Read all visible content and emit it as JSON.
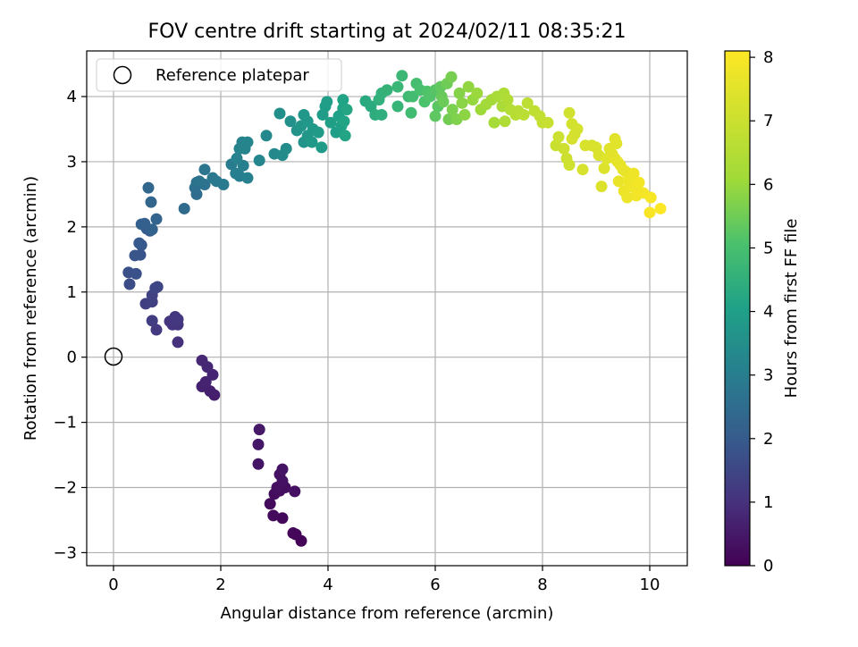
{
  "chart_data": {
    "type": "scatter",
    "title": "FOV centre drift starting at 2024/02/11 08:35:21",
    "xlabel": "Angular distance from reference (arcmin)",
    "ylabel": "Rotation from reference (arcmin)",
    "xlim": [
      -0.5,
      10.7
    ],
    "ylim": [
      -3.2,
      4.7
    ],
    "xticks": [
      0,
      2,
      4,
      6,
      8,
      10
    ],
    "yticks": [
      -3,
      -2,
      -1,
      0,
      1,
      2,
      3,
      4
    ],
    "grid": true,
    "colorscale": "viridis",
    "colorbar": {
      "label": "Hours from first FF file",
      "range": [
        0,
        8.1
      ],
      "ticks": [
        0,
        1,
        2,
        3,
        4,
        5,
        6,
        7,
        8
      ]
    },
    "legend": {
      "position": "top-left",
      "entries": [
        "Reference platepar"
      ]
    },
    "reference_point": {
      "x": 0,
      "y": 0,
      "label": "Reference platepar"
    },
    "points": [
      [
        3.5,
        -2.82,
        0.05
      ],
      [
        3.4,
        -2.72,
        0.1
      ],
      [
        3.35,
        -2.7,
        0.12
      ],
      [
        3.15,
        -2.47,
        0.15
      ],
      [
        2.98,
        -2.43,
        0.18
      ],
      [
        2.92,
        -2.25,
        0.2
      ],
      [
        3.0,
        -2.1,
        0.22
      ],
      [
        3.1,
        -2.05,
        0.25
      ],
      [
        3.2,
        -2.0,
        0.28
      ],
      [
        3.05,
        -2.0,
        0.3
      ],
      [
        3.38,
        -2.06,
        0.32
      ],
      [
        3.15,
        -1.9,
        0.34
      ],
      [
        3.1,
        -1.8,
        0.36
      ],
      [
        3.15,
        -1.72,
        0.38
      ],
      [
        2.7,
        -1.64,
        0.42
      ],
      [
        2.7,
        -1.34,
        0.45
      ],
      [
        2.72,
        -1.11,
        0.48
      ],
      [
        1.88,
        -0.58,
        0.6
      ],
      [
        1.8,
        -0.52,
        0.65
      ],
      [
        1.65,
        -0.45,
        0.68
      ],
      [
        1.72,
        -0.38,
        0.7
      ],
      [
        1.85,
        -0.27,
        0.75
      ],
      [
        1.75,
        -0.15,
        0.78
      ],
      [
        1.65,
        -0.05,
        0.8
      ],
      [
        1.2,
        0.23,
        1.0
      ],
      [
        1.1,
        0.5,
        1.05
      ],
      [
        1.2,
        0.5,
        1.08
      ],
      [
        1.05,
        0.55,
        1.1
      ],
      [
        1.15,
        0.62,
        1.12
      ],
      [
        1.2,
        0.58,
        1.15
      ],
      [
        0.8,
        0.42,
        1.2
      ],
      [
        0.72,
        0.56,
        1.25
      ],
      [
        0.6,
        0.82,
        1.3
      ],
      [
        0.72,
        0.85,
        1.35
      ],
      [
        0.72,
        0.95,
        1.4
      ],
      [
        0.82,
        1.08,
        1.45
      ],
      [
        0.78,
        1.06,
        1.5
      ],
      [
        0.3,
        1.12,
        1.65
      ],
      [
        0.28,
        1.3,
        1.7
      ],
      [
        0.42,
        1.28,
        1.75
      ],
      [
        0.5,
        1.57,
        1.8
      ],
      [
        0.4,
        1.56,
        1.85
      ],
      [
        0.52,
        1.72,
        1.9
      ],
      [
        0.48,
        1.75,
        1.95
      ],
      [
        0.68,
        1.94,
        2.0
      ],
      [
        0.62,
        1.97,
        2.05
      ],
      [
        0.58,
        2.05,
        2.1
      ],
      [
        0.52,
        2.04,
        2.15
      ],
      [
        0.72,
        1.96,
        2.2
      ],
      [
        0.8,
        2.12,
        2.25
      ],
      [
        0.7,
        2.38,
        2.3
      ],
      [
        0.65,
        2.6,
        2.35
      ],
      [
        1.32,
        2.28,
        2.45
      ],
      [
        1.55,
        2.5,
        2.5
      ],
      [
        1.52,
        2.6,
        2.55
      ],
      [
        1.55,
        2.68,
        2.6
      ],
      [
        1.7,
        2.65,
        2.65
      ],
      [
        1.6,
        2.7,
        2.7
      ],
      [
        1.7,
        2.88,
        2.75
      ],
      [
        1.85,
        2.75,
        2.8
      ],
      [
        1.92,
        2.7,
        2.85
      ],
      [
        2.05,
        2.65,
        2.9
      ],
      [
        2.2,
        2.96,
        2.95
      ],
      [
        2.28,
        2.82,
        3.0
      ],
      [
        2.35,
        2.78,
        3.02
      ],
      [
        2.42,
        2.94,
        3.05
      ],
      [
        2.5,
        2.75,
        3.08
      ],
      [
        2.3,
        3.05,
        3.1
      ],
      [
        2.35,
        3.2,
        3.12
      ],
      [
        2.4,
        3.3,
        3.15
      ],
      [
        2.5,
        3.3,
        3.18
      ],
      [
        2.45,
        3.2,
        3.2
      ],
      [
        2.72,
        3.02,
        3.25
      ],
      [
        2.85,
        3.4,
        3.3
      ],
      [
        3.0,
        3.12,
        3.35
      ],
      [
        3.15,
        3.1,
        3.4
      ],
      [
        3.22,
        3.2,
        3.45
      ],
      [
        3.1,
        3.74,
        3.5
      ],
      [
        3.3,
        3.62,
        3.55
      ],
      [
        3.42,
        3.48,
        3.6
      ],
      [
        3.55,
        3.3,
        3.65
      ],
      [
        3.5,
        3.55,
        3.7
      ],
      [
        3.62,
        3.4,
        3.72
      ],
      [
        3.55,
        3.72,
        3.75
      ],
      [
        3.62,
        3.62,
        3.78
      ],
      [
        3.72,
        3.5,
        3.8
      ],
      [
        3.7,
        3.3,
        3.82
      ],
      [
        3.82,
        3.45,
        3.85
      ],
      [
        3.88,
        3.22,
        3.88
      ],
      [
        3.9,
        3.72,
        3.9
      ],
      [
        3.95,
        3.85,
        3.92
      ],
      [
        3.98,
        3.92,
        3.95
      ],
      [
        4.05,
        3.6,
        3.98
      ],
      [
        4.15,
        3.45,
        4.0
      ],
      [
        4.25,
        3.55,
        4.02
      ],
      [
        4.2,
        3.7,
        4.05
      ],
      [
        4.28,
        3.82,
        4.08
      ],
      [
        4.28,
        3.95,
        4.1
      ],
      [
        4.3,
        3.62,
        4.12
      ],
      [
        4.32,
        3.4,
        4.15
      ],
      [
        4.35,
        3.8,
        4.18
      ],
      [
        4.7,
        3.93,
        4.3
      ],
      [
        4.8,
        3.85,
        4.35
      ],
      [
        4.88,
        3.72,
        4.4
      ],
      [
        5.0,
        3.72,
        4.45
      ],
      [
        4.95,
        3.95,
        4.5
      ],
      [
        5.0,
        4.05,
        4.55
      ],
      [
        5.1,
        4.1,
        4.6
      ],
      [
        5.3,
        3.85,
        4.65
      ],
      [
        5.3,
        4.15,
        4.7
      ],
      [
        5.38,
        4.32,
        4.75
      ],
      [
        5.5,
        4.0,
        4.8
      ],
      [
        5.55,
        3.75,
        4.85
      ],
      [
        5.58,
        4.0,
        4.9
      ],
      [
        5.65,
        4.2,
        4.95
      ],
      [
        5.72,
        4.1,
        5.0
      ],
      [
        5.8,
        3.92,
        5.05
      ],
      [
        5.85,
        4.08,
        5.1
      ],
      [
        5.9,
        4.0,
        5.15
      ],
      [
        6.0,
        4.1,
        5.2
      ],
      [
        6.05,
        3.85,
        5.25
      ],
      [
        6.0,
        3.7,
        5.3
      ],
      [
        6.1,
        4.15,
        5.35
      ],
      [
        6.12,
        4.0,
        5.4
      ],
      [
        6.15,
        3.92,
        5.45
      ],
      [
        6.22,
        4.2,
        5.5
      ],
      [
        6.25,
        3.65,
        5.55
      ],
      [
        6.3,
        4.3,
        5.6
      ],
      [
        6.32,
        3.8,
        5.65
      ],
      [
        6.4,
        3.65,
        5.7
      ],
      [
        6.45,
        4.05,
        5.75
      ],
      [
        6.5,
        3.9,
        5.8
      ],
      [
        6.55,
        3.72,
        5.85
      ],
      [
        6.62,
        4.15,
        5.9
      ],
      [
        6.7,
        3.95,
        5.95
      ],
      [
        6.78,
        4.05,
        6.0
      ],
      [
        6.85,
        3.8,
        6.05
      ],
      [
        6.95,
        3.88,
        6.1
      ],
      [
        7.05,
        3.95,
        6.15
      ],
      [
        7.1,
        3.6,
        6.2
      ],
      [
        7.15,
        4.0,
        6.25
      ],
      [
        7.25,
        3.85,
        6.3
      ],
      [
        7.28,
        4.05,
        6.35
      ],
      [
        7.3,
        3.62,
        6.4
      ],
      [
        7.35,
        3.95,
        6.45
      ],
      [
        7.4,
        3.8,
        6.5
      ],
      [
        7.5,
        3.72,
        6.55
      ],
      [
        7.55,
        3.78,
        6.6
      ],
      [
        7.65,
        3.72,
        6.65
      ],
      [
        7.72,
        3.9,
        6.7
      ],
      [
        7.85,
        3.78,
        6.75
      ],
      [
        7.95,
        3.7,
        6.8
      ],
      [
        8.0,
        3.6,
        6.85
      ],
      [
        8.1,
        3.6,
        6.9
      ],
      [
        8.25,
        3.25,
        7.0
      ],
      [
        8.3,
        3.38,
        7.02
      ],
      [
        8.4,
        3.2,
        7.05
      ],
      [
        8.45,
        3.05,
        7.08
      ],
      [
        8.5,
        2.95,
        7.1
      ],
      [
        8.5,
        3.75,
        7.12
      ],
      [
        8.55,
        3.58,
        7.15
      ],
      [
        8.6,
        3.42,
        7.18
      ],
      [
        8.65,
        3.5,
        7.2
      ],
      [
        8.55,
        3.35,
        7.22
      ],
      [
        8.75,
        2.88,
        7.25
      ],
      [
        8.8,
        3.25,
        7.28
      ],
      [
        8.92,
        3.25,
        7.3
      ],
      [
        9.0,
        3.22,
        7.32
      ],
      [
        9.05,
        3.1,
        7.35
      ],
      [
        9.1,
        2.62,
        7.38
      ],
      [
        9.15,
        2.9,
        7.4
      ],
      [
        9.2,
        3.05,
        7.42
      ],
      [
        9.25,
        3.2,
        7.45
      ],
      [
        9.3,
        3.12,
        7.48
      ],
      [
        9.35,
        3.35,
        7.5
      ],
      [
        9.38,
        3.28,
        7.52
      ],
      [
        9.35,
        3.05,
        7.55
      ],
      [
        9.4,
        3.0,
        7.58
      ],
      [
        9.45,
        2.95,
        7.6
      ],
      [
        9.5,
        2.88,
        7.62
      ],
      [
        9.55,
        2.85,
        7.65
      ],
      [
        9.42,
        2.7,
        7.68
      ],
      [
        9.52,
        2.55,
        7.7
      ],
      [
        9.58,
        2.45,
        7.72
      ],
      [
        9.6,
        2.72,
        7.75
      ],
      [
        9.62,
        2.62,
        7.78
      ],
      [
        9.7,
        2.82,
        7.8
      ],
      [
        9.72,
        2.6,
        7.82
      ],
      [
        9.75,
        2.48,
        7.85
      ],
      [
        9.8,
        2.68,
        7.88
      ],
      [
        9.88,
        2.52,
        7.9
      ],
      [
        10.02,
        2.45,
        7.95
      ],
      [
        10.0,
        2.22,
        8.0
      ],
      [
        10.2,
        2.28,
        8.05
      ]
    ]
  }
}
